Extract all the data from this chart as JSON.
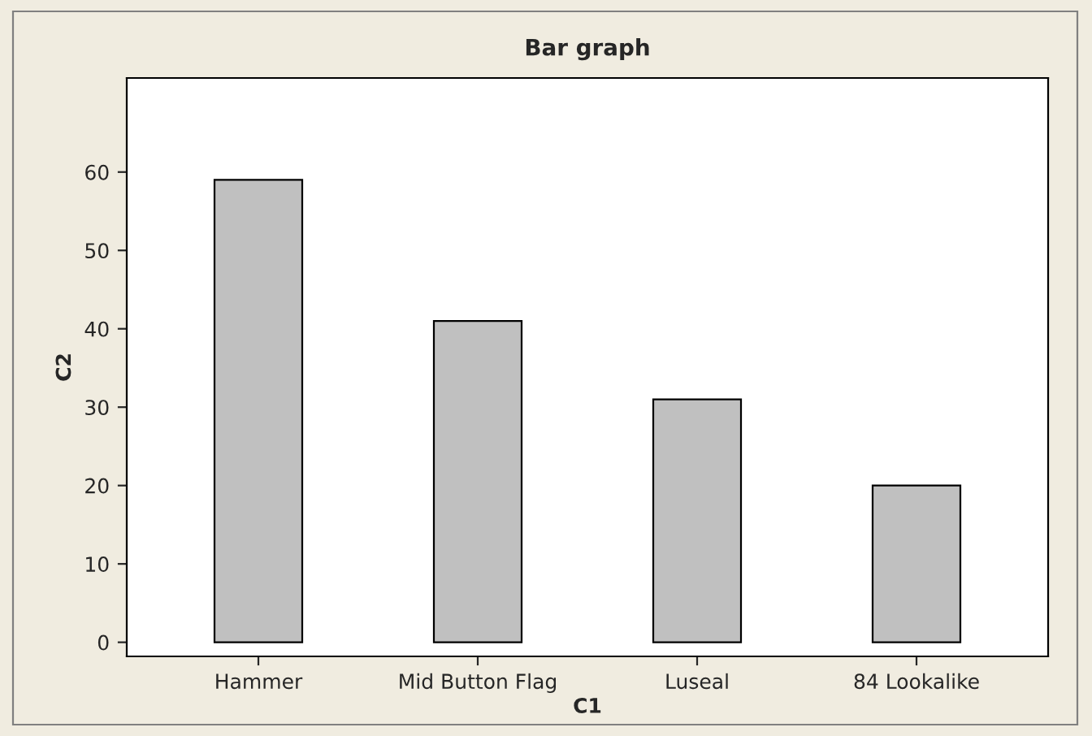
{
  "chart_data": {
    "type": "bar",
    "title": "Bar graph",
    "xlabel": "C1",
    "ylabel": "C2",
    "categories": [
      "Hammer",
      "Mid Button Flag",
      "Luseal",
      "84 Lookalike"
    ],
    "values": [
      59,
      41,
      31,
      20
    ],
    "color": "#c0c0c0",
    "ylim": [
      0,
      72
    ],
    "yticks": [
      0,
      10,
      20,
      30,
      40,
      50,
      60
    ],
    "grid": false,
    "legend": false
  }
}
